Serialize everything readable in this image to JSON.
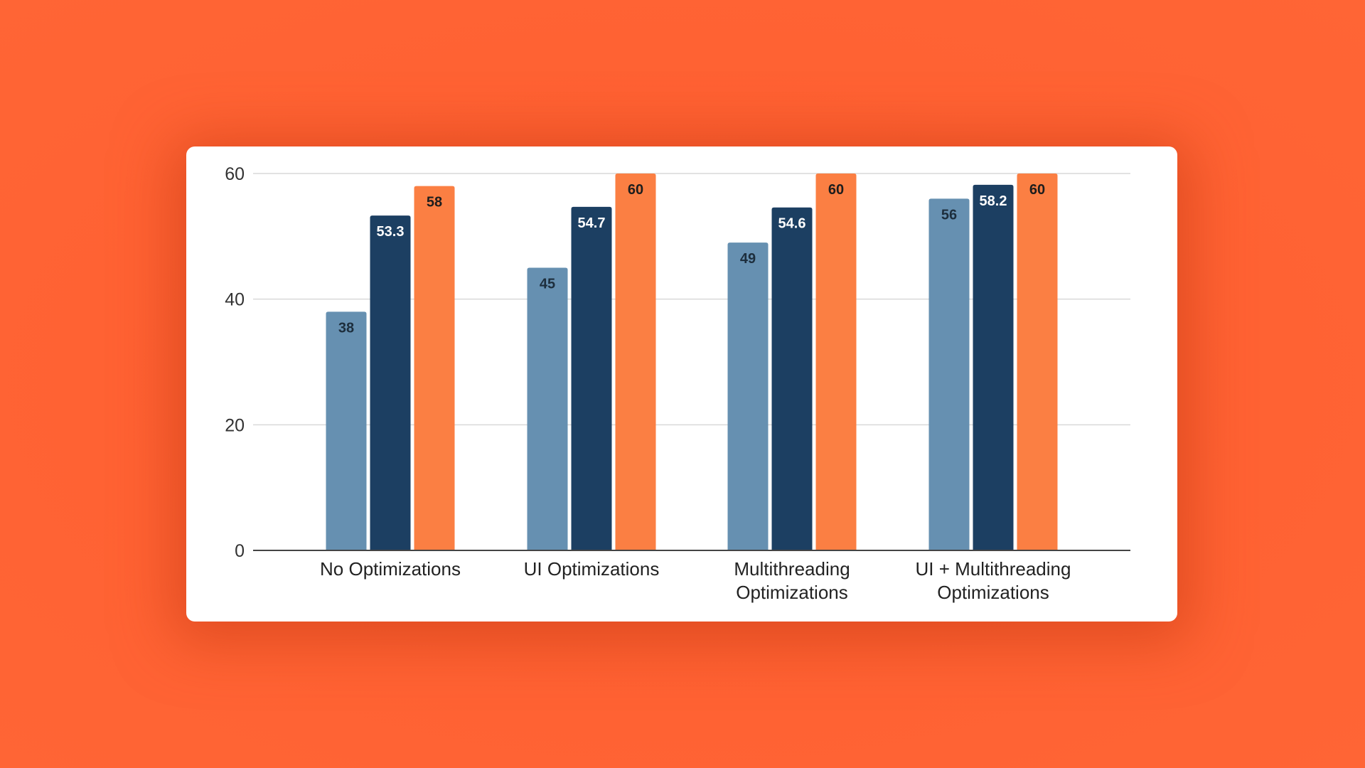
{
  "chart_data": {
    "type": "bar",
    "title": "",
    "xlabel": "",
    "ylabel": "",
    "ylim": [
      0,
      60
    ],
    "yticks": [
      0,
      20,
      40,
      60
    ],
    "grid": true,
    "legend": "none",
    "categories": [
      [
        "No Optimizations"
      ],
      [
        "UI Optimizations"
      ],
      [
        "Multithreading",
        "Optimizations"
      ],
      [
        "UI + Multithreading",
        "Optimizations"
      ]
    ],
    "category_names": [
      "No Optimizations",
      "UI Optimizations",
      "Multithreading Optimizations",
      "UI + Multithreading Optimizations"
    ],
    "series": [
      {
        "name": "Series 1",
        "color": "#6690b1",
        "label_color": "#1d2e3d",
        "values": [
          38,
          45,
          49,
          56
        ]
      },
      {
        "name": "Series 2",
        "color": "#1c3f62",
        "label_color": "#ffffff",
        "values": [
          53.3,
          54.7,
          54.6,
          58.2
        ]
      },
      {
        "name": "Series 3",
        "color": "#fb7f43",
        "label_color": "#1d1d1d",
        "values": [
          58,
          60,
          60,
          60
        ]
      }
    ],
    "gridline_color": "#d9d9d9",
    "axis_color": "#444444"
  }
}
